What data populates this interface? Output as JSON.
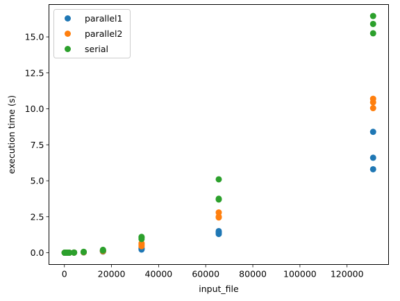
{
  "chart_data": {
    "type": "scatter",
    "title": "",
    "xlabel": "input_file",
    "ylabel": "execution time (s)",
    "xlim": [
      -6553.6,
      137625.6
    ],
    "ylim": [
      -0.82,
      17.25
    ],
    "x_ticks": [
      0,
      20000,
      40000,
      60000,
      80000,
      100000,
      120000
    ],
    "x_tick_labels": [
      "0",
      "20000",
      "40000",
      "60000",
      "80000",
      "100000",
      "120000"
    ],
    "y_ticks": [
      0.0,
      2.5,
      5.0,
      7.5,
      10.0,
      12.5,
      15.0
    ],
    "y_tick_labels": [
      "0.0",
      "2.5",
      "5.0",
      "7.5",
      "10.0",
      "12.5",
      "15.0"
    ],
    "grid": false,
    "legend_position": "top-left",
    "series": [
      {
        "name": "parallel1",
        "color": "#1f77b4",
        "points": [
          [
            128,
            0.0
          ],
          [
            128,
            0.0
          ],
          [
            128,
            0.0
          ],
          [
            256,
            0.0
          ],
          [
            256,
            0.0
          ],
          [
            256,
            0.0
          ],
          [
            512,
            0.0
          ],
          [
            512,
            0.0
          ],
          [
            512,
            0.0
          ],
          [
            1024,
            0.0
          ],
          [
            1024,
            0.0
          ],
          [
            1024,
            0.0
          ],
          [
            2048,
            0.0
          ],
          [
            2048,
            0.0
          ],
          [
            2048,
            0.0
          ],
          [
            4096,
            0.01
          ],
          [
            4096,
            0.01
          ],
          [
            4096,
            0.01
          ],
          [
            8192,
            0.02
          ],
          [
            8192,
            0.03
          ],
          [
            8192,
            0.03
          ],
          [
            16384,
            0.08
          ],
          [
            16384,
            0.09
          ],
          [
            16384,
            0.1
          ],
          [
            32768,
            0.22
          ],
          [
            32768,
            0.28
          ],
          [
            32768,
            0.32
          ],
          [
            65536,
            1.3
          ],
          [
            65536,
            1.4
          ],
          [
            65536,
            1.5
          ],
          [
            131072,
            5.8
          ],
          [
            131072,
            6.6
          ],
          [
            131072,
            8.4
          ]
        ]
      },
      {
        "name": "parallel2",
        "color": "#ff7f0e",
        "points": [
          [
            128,
            0.0
          ],
          [
            128,
            0.0
          ],
          [
            128,
            0.0
          ],
          [
            256,
            0.0
          ],
          [
            256,
            0.0
          ],
          [
            256,
            0.0
          ],
          [
            512,
            0.0
          ],
          [
            512,
            0.0
          ],
          [
            512,
            0.0
          ],
          [
            1024,
            0.0
          ],
          [
            1024,
            0.0
          ],
          [
            1024,
            0.0
          ],
          [
            2048,
            0.0
          ],
          [
            2048,
            0.0
          ],
          [
            2048,
            0.0
          ],
          [
            4096,
            0.01
          ],
          [
            4096,
            0.01
          ],
          [
            4096,
            0.01
          ],
          [
            8192,
            0.03
          ],
          [
            8192,
            0.04
          ],
          [
            8192,
            0.04
          ],
          [
            16384,
            0.1
          ],
          [
            16384,
            0.12
          ],
          [
            16384,
            0.13
          ],
          [
            32768,
            0.45
          ],
          [
            32768,
            0.55
          ],
          [
            32768,
            0.65
          ],
          [
            65536,
            2.45
          ],
          [
            65536,
            2.5
          ],
          [
            65536,
            2.8
          ],
          [
            131072,
            10.05
          ],
          [
            131072,
            10.45
          ],
          [
            131072,
            10.7
          ]
        ]
      },
      {
        "name": "serial",
        "color": "#2ca02c",
        "points": [
          [
            128,
            0.0
          ],
          [
            128,
            0.0
          ],
          [
            128,
            0.0
          ],
          [
            256,
            0.0
          ],
          [
            256,
            0.0
          ],
          [
            256,
            0.0
          ],
          [
            512,
            0.0
          ],
          [
            512,
            0.0
          ],
          [
            512,
            0.0
          ],
          [
            1024,
            0.0
          ],
          [
            1024,
            0.0
          ],
          [
            1024,
            0.0
          ],
          [
            2048,
            0.0
          ],
          [
            2048,
            0.0
          ],
          [
            2048,
            0.0
          ],
          [
            4096,
            0.01
          ],
          [
            4096,
            0.01
          ],
          [
            4096,
            0.01
          ],
          [
            8192,
            0.05
          ],
          [
            8192,
            0.05
          ],
          [
            8192,
            0.06
          ],
          [
            16384,
            0.15
          ],
          [
            16384,
            0.18
          ],
          [
            16384,
            0.2
          ],
          [
            32768,
            0.95
          ],
          [
            32768,
            1.05
          ],
          [
            32768,
            1.1
          ],
          [
            65536,
            3.7
          ],
          [
            65536,
            3.75
          ],
          [
            65536,
            5.1
          ],
          [
            131072,
            15.25
          ],
          [
            131072,
            15.9
          ],
          [
            131072,
            16.45
          ]
        ]
      }
    ]
  }
}
